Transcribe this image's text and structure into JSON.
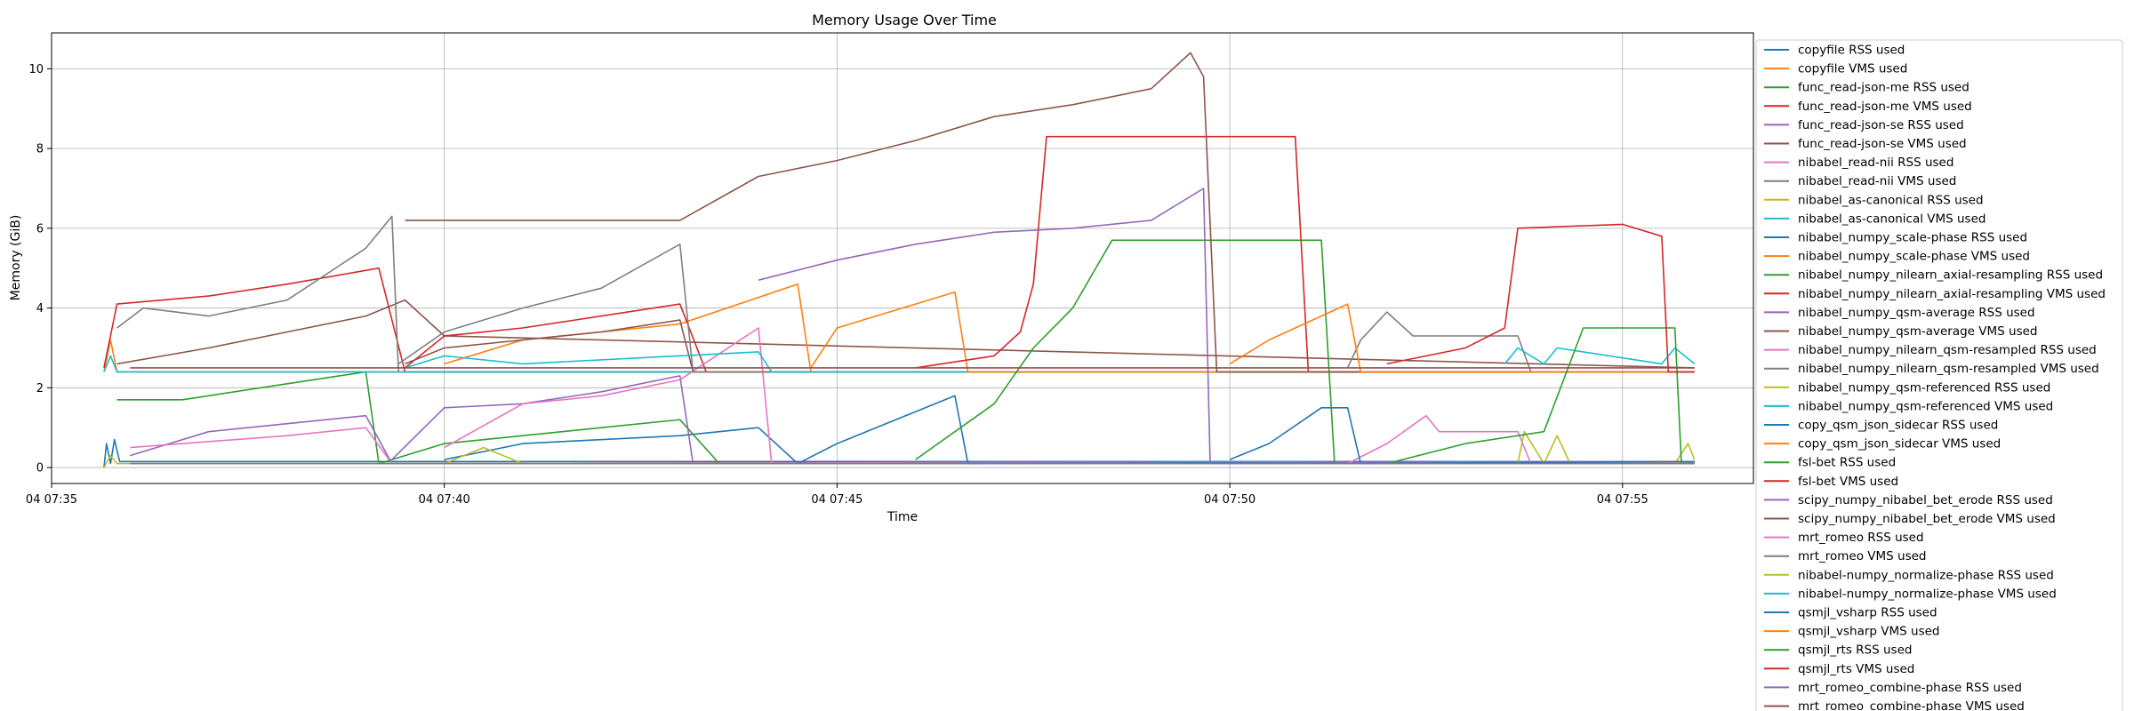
{
  "chart_data": {
    "type": "line",
    "title": "Memory Usage Over Time",
    "xlabel": "Time",
    "ylabel": "Memory (GiB)",
    "x_ticks": [
      "04 07:35",
      "04 07:40",
      "04 07:45",
      "04 07:50",
      "04 07:55"
    ],
    "xlim": [
      "07:35:00",
      "07:56:40"
    ],
    "y_ticks": [
      0,
      2,
      4,
      6,
      8,
      10
    ],
    "ylim": [
      -0.4,
      10.9
    ],
    "grid": true,
    "legend_position": "right, outside plot",
    "series": [
      {
        "name": "copyfile RSS used",
        "color": "#1f77b4",
        "points": [
          [
            "07:35:40",
            0.0
          ],
          [
            "07:35:42",
            0.6
          ],
          [
            "07:35:45",
            0.1
          ],
          [
            "07:35:48",
            0.7
          ],
          [
            "07:35:52",
            0.15
          ],
          [
            "07:55:55",
            0.15
          ]
        ]
      },
      {
        "name": "copyfile VMS used",
        "color": "#ff7f0e",
        "points": [
          [
            "07:35:40",
            2.4
          ],
          [
            "07:35:45",
            3.2
          ],
          [
            "07:35:50",
            2.4
          ],
          [
            "07:55:55",
            2.4
          ]
        ]
      },
      {
        "name": "func_read-json-me RSS used",
        "color": "#2ca02c",
        "points": [
          [
            "07:35:50",
            1.7
          ],
          [
            "07:36:40",
            1.7
          ],
          [
            "07:38:00",
            2.1
          ],
          [
            "07:39:00",
            2.4
          ],
          [
            "07:39:10",
            0.1
          ],
          [
            "07:55:55",
            0.15
          ]
        ]
      },
      {
        "name": "func_read-json-me VMS used",
        "color": "#d62728",
        "points": [
          [
            "07:35:40",
            2.5
          ],
          [
            "07:35:50",
            4.1
          ],
          [
            "07:37:00",
            4.3
          ],
          [
            "07:38:00",
            4.6
          ],
          [
            "07:39:10",
            5.0
          ],
          [
            "07:39:30",
            2.4
          ],
          [
            "07:55:55",
            2.4
          ]
        ]
      },
      {
        "name": "func_read-json-se RSS used",
        "color": "#9467bd",
        "points": [
          [
            "07:36:00",
            0.3
          ],
          [
            "07:37:00",
            0.9
          ],
          [
            "07:38:00",
            1.1
          ],
          [
            "07:39:00",
            1.3
          ],
          [
            "07:39:20",
            0.1
          ],
          [
            "07:55:55",
            0.15
          ]
        ]
      },
      {
        "name": "func_read-json-se VMS used",
        "color": "#8c564b",
        "points": [
          [
            "07:35:50",
            2.6
          ],
          [
            "07:37:00",
            3.0
          ],
          [
            "07:38:00",
            3.4
          ],
          [
            "07:39:00",
            3.8
          ],
          [
            "07:39:30",
            4.2
          ],
          [
            "07:40:00",
            3.3
          ],
          [
            "07:55:55",
            2.5
          ]
        ]
      },
      {
        "name": "nibabel_read-nii RSS used",
        "color": "#e377c2",
        "points": [
          [
            "07:36:00",
            0.5
          ],
          [
            "07:38:00",
            0.8
          ],
          [
            "07:39:00",
            1.0
          ],
          [
            "07:39:20",
            0.1
          ],
          [
            "07:55:55",
            0.15
          ]
        ]
      },
      {
        "name": "nibabel_read-nii VMS used",
        "color": "#7f7f7f",
        "points": [
          [
            "07:35:50",
            3.5
          ],
          [
            "07:36:10",
            4.0
          ],
          [
            "07:37:00",
            3.8
          ],
          [
            "07:38:00",
            4.2
          ],
          [
            "07:39:00",
            5.5
          ],
          [
            "07:39:20",
            6.3
          ],
          [
            "07:39:25",
            2.4
          ],
          [
            "07:55:55",
            2.4
          ]
        ]
      },
      {
        "name": "nibabel_as-canonical RSS used",
        "color": "#bcbd22",
        "points": [
          [
            "07:35:40",
            0.0
          ],
          [
            "07:35:45",
            0.3
          ],
          [
            "07:35:50",
            0.1
          ],
          [
            "07:55:55",
            0.1
          ]
        ]
      },
      {
        "name": "nibabel_as-canonical VMS used",
        "color": "#17becf",
        "points": [
          [
            "07:35:40",
            2.4
          ],
          [
            "07:35:45",
            2.8
          ],
          [
            "07:35:50",
            2.4
          ],
          [
            "07:55:55",
            2.4
          ]
        ]
      },
      {
        "name": "nibabel_numpy_scale-phase RSS used",
        "color": "#1f77b4",
        "points": [
          [
            "07:40:00",
            0.2
          ],
          [
            "07:41:00",
            0.6
          ],
          [
            "07:43:00",
            0.8
          ],
          [
            "07:44:00",
            1.0
          ],
          [
            "07:44:30",
            0.1
          ],
          [
            "07:55:55",
            0.15
          ]
        ]
      },
      {
        "name": "nibabel_numpy_scale-phase VMS used",
        "color": "#ff7f0e",
        "points": [
          [
            "07:40:00",
            2.6
          ],
          [
            "07:41:00",
            3.2
          ],
          [
            "07:43:00",
            3.6
          ],
          [
            "07:44:30",
            4.6
          ],
          [
            "07:44:40",
            2.4
          ],
          [
            "07:55:55",
            2.4
          ]
        ]
      },
      {
        "name": "nibabel_numpy_nilearn_axial-resampling RSS used",
        "color": "#2ca02c",
        "points": [
          [
            "07:39:10",
            0.1
          ],
          [
            "07:40:00",
            0.6
          ],
          [
            "07:41:00",
            0.8
          ],
          [
            "07:42:00",
            1.0
          ],
          [
            "07:43:00",
            1.2
          ],
          [
            "07:43:30",
            0.1
          ],
          [
            "07:55:55",
            0.15
          ]
        ]
      },
      {
        "name": "nibabel_numpy_nilearn_axial-resampling VMS used",
        "color": "#d62728",
        "points": [
          [
            "07:39:30",
            2.5
          ],
          [
            "07:40:00",
            3.3
          ],
          [
            "07:41:00",
            3.5
          ],
          [
            "07:42:00",
            3.8
          ],
          [
            "07:43:00",
            4.1
          ],
          [
            "07:43:20",
            2.4
          ],
          [
            "07:55:55",
            2.4
          ]
        ]
      },
      {
        "name": "nibabel_numpy_qsm-average RSS used",
        "color": "#9467bd",
        "points": [
          [
            "07:39:20",
            0.2
          ],
          [
            "07:40:00",
            1.5
          ],
          [
            "07:41:00",
            1.6
          ],
          [
            "07:42:00",
            1.9
          ],
          [
            "07:43:00",
            2.3
          ],
          [
            "07:43:10",
            0.1
          ],
          [
            "07:55:55",
            0.15
          ]
        ]
      },
      {
        "name": "nibabel_numpy_qsm-average VMS used",
        "color": "#8c564b",
        "points": [
          [
            "07:39:30",
            2.6
          ],
          [
            "07:40:00",
            3.0
          ],
          [
            "07:41:00",
            3.2
          ],
          [
            "07:42:00",
            3.4
          ],
          [
            "07:43:00",
            3.7
          ],
          [
            "07:43:10",
            2.4
          ],
          [
            "07:55:55",
            2.4
          ]
        ]
      },
      {
        "name": "nibabel_numpy_nilearn_qsm-resampled RSS used",
        "color": "#e377c2",
        "points": [
          [
            "07:40:00",
            0.5
          ],
          [
            "07:41:00",
            1.6
          ],
          [
            "07:42:00",
            1.8
          ],
          [
            "07:43:00",
            2.2
          ],
          [
            "07:44:00",
            3.5
          ],
          [
            "07:44:10",
            0.1
          ],
          [
            "07:55:55",
            0.15
          ]
        ]
      },
      {
        "name": "nibabel_numpy_nilearn_qsm-resampled VMS used",
        "color": "#7f7f7f",
        "points": [
          [
            "07:39:25",
            2.6
          ],
          [
            "07:40:00",
            3.4
          ],
          [
            "07:41:00",
            4.0
          ],
          [
            "07:42:00",
            4.5
          ],
          [
            "07:43:00",
            5.6
          ],
          [
            "07:43:10",
            2.4
          ],
          [
            "07:55:55",
            2.4
          ]
        ]
      },
      {
        "name": "nibabel_numpy_qsm-referenced RSS used",
        "color": "#bcbd22",
        "points": [
          [
            "07:40:00",
            0.1
          ],
          [
            "07:40:30",
            0.5
          ],
          [
            "07:41:00",
            0.1
          ],
          [
            "07:55:55",
            0.1
          ]
        ]
      },
      {
        "name": "nibabel_numpy_qsm-referenced VMS used",
        "color": "#17becf",
        "points": [
          [
            "07:39:30",
            2.5
          ],
          [
            "07:40:00",
            2.8
          ],
          [
            "07:41:00",
            2.6
          ],
          [
            "07:43:00",
            2.8
          ],
          [
            "07:44:00",
            2.9
          ],
          [
            "07:44:10",
            2.4
          ],
          [
            "07:55:55",
            2.4
          ]
        ]
      },
      {
        "name": "copy_qsm_json_sidecar RSS used",
        "color": "#1f77b4",
        "points": [
          [
            "07:44:30",
            0.1
          ],
          [
            "07:45:00",
            0.6
          ],
          [
            "07:46:00",
            1.4
          ],
          [
            "07:46:30",
            1.8
          ],
          [
            "07:46:40",
            0.1
          ],
          [
            "07:55:55",
            0.15
          ]
        ]
      },
      {
        "name": "copy_qsm_json_sidecar VMS used",
        "color": "#ff7f0e",
        "points": [
          [
            "07:44:40",
            2.5
          ],
          [
            "07:45:00",
            3.5
          ],
          [
            "07:46:00",
            4.1
          ],
          [
            "07:46:30",
            4.4
          ],
          [
            "07:46:40",
            2.4
          ],
          [
            "07:55:55",
            2.4
          ]
        ]
      },
      {
        "name": "fsl-bet RSS used",
        "color": "#2ca02c",
        "points": [
          [
            "07:46:00",
            0.2
          ],
          [
            "07:47:00",
            1.6
          ],
          [
            "07:47:30",
            3.0
          ],
          [
            "07:48:00",
            4.0
          ],
          [
            "07:48:30",
            5.7
          ],
          [
            "07:51:10",
            5.7
          ],
          [
            "07:51:20",
            0.1
          ],
          [
            "07:55:55",
            0.15
          ]
        ]
      },
      {
        "name": "fsl-bet VMS used",
        "color": "#d62728",
        "points": [
          [
            "07:46:00",
            2.5
          ],
          [
            "07:47:00",
            2.8
          ],
          [
            "07:47:20",
            3.4
          ],
          [
            "07:47:30",
            4.6
          ],
          [
            "07:47:40",
            8.3
          ],
          [
            "07:50:50",
            8.3
          ],
          [
            "07:51:00",
            2.4
          ],
          [
            "07:55:55",
            2.4
          ]
        ]
      },
      {
        "name": "scipy_numpy_nibabel_bet_erode RSS used",
        "color": "#9467bd",
        "points": [
          [
            "07:44:00",
            4.7
          ],
          [
            "07:45:00",
            5.2
          ],
          [
            "07:46:00",
            5.6
          ],
          [
            "07:47:00",
            5.9
          ],
          [
            "07:48:00",
            6.0
          ],
          [
            "07:49:00",
            6.2
          ],
          [
            "07:49:40",
            7.0
          ],
          [
            "07:49:45",
            0.1
          ],
          [
            "07:55:55",
            0.15
          ]
        ]
      },
      {
        "name": "scipy_numpy_nibabel_bet_erode VMS used",
        "color": "#8c564b",
        "points": [
          [
            "07:39:30",
            6.2
          ],
          [
            "07:43:00",
            6.2
          ],
          [
            "07:44:00",
            7.3
          ],
          [
            "07:45:00",
            7.7
          ],
          [
            "07:46:00",
            8.2
          ],
          [
            "07:47:00",
            8.8
          ],
          [
            "07:48:00",
            9.1
          ],
          [
            "07:49:00",
            9.5
          ],
          [
            "07:49:30",
            10.4
          ],
          [
            "07:49:40",
            9.8
          ],
          [
            "07:49:50",
            2.4
          ],
          [
            "07:55:55",
            2.4
          ]
        ]
      },
      {
        "name": "mrt_romeo RSS used",
        "color": "#e377c2",
        "points": [
          [
            "07:51:30",
            0.1
          ],
          [
            "07:52:00",
            0.6
          ],
          [
            "07:52:30",
            1.3
          ],
          [
            "07:52:40",
            0.9
          ],
          [
            "07:53:40",
            0.9
          ],
          [
            "07:53:50",
            0.1
          ],
          [
            "07:55:55",
            0.15
          ]
        ]
      },
      {
        "name": "mrt_romeo VMS used",
        "color": "#7f7f7f",
        "points": [
          [
            "07:51:30",
            2.5
          ],
          [
            "07:51:40",
            3.2
          ],
          [
            "07:52:00",
            3.9
          ],
          [
            "07:52:20",
            3.3
          ],
          [
            "07:53:40",
            3.3
          ],
          [
            "07:53:50",
            2.4
          ],
          [
            "07:55:55",
            2.4
          ]
        ]
      },
      {
        "name": "nibabel-numpy_normalize-phase RSS used",
        "color": "#bcbd22",
        "points": [
          [
            "07:53:40",
            0.1
          ],
          [
            "07:53:45",
            0.9
          ],
          [
            "07:54:00",
            0.1
          ],
          [
            "07:54:10",
            0.8
          ],
          [
            "07:54:20",
            0.1
          ],
          [
            "07:55:40",
            0.1
          ],
          [
            "07:55:50",
            0.6
          ],
          [
            "07:55:55",
            0.2
          ]
        ]
      },
      {
        "name": "nibabel-numpy_normalize-phase VMS used",
        "color": "#17becf",
        "points": [
          [
            "07:53:30",
            2.6
          ],
          [
            "07:53:40",
            3.0
          ],
          [
            "07:54:00",
            2.6
          ],
          [
            "07:54:10",
            3.0
          ],
          [
            "07:55:30",
            2.6
          ],
          [
            "07:55:40",
            3.0
          ],
          [
            "07:55:55",
            2.6
          ]
        ]
      },
      {
        "name": "qsmjl_vsharp RSS used",
        "color": "#1f77b4",
        "points": [
          [
            "07:50:00",
            0.2
          ],
          [
            "07:50:30",
            0.6
          ],
          [
            "07:51:10",
            1.5
          ],
          [
            "07:51:30",
            1.5
          ],
          [
            "07:51:40",
            0.1
          ],
          [
            "07:55:55",
            0.15
          ]
        ]
      },
      {
        "name": "qsmjl_vsharp VMS used",
        "color": "#ff7f0e",
        "points": [
          [
            "07:50:00",
            2.6
          ],
          [
            "07:50:30",
            3.2
          ],
          [
            "07:51:10",
            3.8
          ],
          [
            "07:51:30",
            4.1
          ],
          [
            "07:51:40",
            2.4
          ],
          [
            "07:55:55",
            2.4
          ]
        ]
      },
      {
        "name": "qsmjl_rts RSS used",
        "color": "#2ca02c",
        "points": [
          [
            "07:52:00",
            0.1
          ],
          [
            "07:53:00",
            0.6
          ],
          [
            "07:54:00",
            0.9
          ],
          [
            "07:54:30",
            3.5
          ],
          [
            "07:55:40",
            3.5
          ],
          [
            "07:55:45",
            0.1
          ],
          [
            "07:55:55",
            0.1
          ]
        ]
      },
      {
        "name": "qsmjl_rts VMS used",
        "color": "#d62728",
        "points": [
          [
            "07:52:00",
            2.6
          ],
          [
            "07:53:00",
            3.0
          ],
          [
            "07:53:30",
            3.5
          ],
          [
            "07:53:40",
            6.0
          ],
          [
            "07:55:00",
            6.1
          ],
          [
            "07:55:30",
            5.8
          ],
          [
            "07:55:35",
            2.4
          ],
          [
            "07:55:55",
            2.4
          ]
        ]
      },
      {
        "name": "mrt_romeo_combine-phase RSS used",
        "color": "#9467bd",
        "points": [
          [
            "07:36:00",
            0.1
          ],
          [
            "07:55:55",
            0.1
          ]
        ]
      },
      {
        "name": "mrt_romeo_combine-phase VMS used",
        "color": "#8c564b",
        "points": [
          [
            "07:36:00",
            2.5
          ],
          [
            "07:55:55",
            2.5
          ]
        ]
      }
    ]
  }
}
